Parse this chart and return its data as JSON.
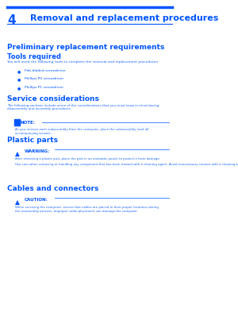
{
  "bg_color": "#ffffff",
  "blue": "#0055FF",
  "chapter_num": "4",
  "chapter_title": "Removal and replacement procedures",
  "section_title": "Preliminary replacement requirements",
  "tools_heading": "Tools required",
  "tools_intro": "You will need the following tools to complete the removal and replacement procedures:",
  "tools_list": [
    "Flat-bladed screwdriver",
    "Phillips P0 screwdriver",
    "Phillips P1 screwdriver"
  ],
  "service_heading": "Service considerations",
  "service_intro": "The following sections include some of the considerations that you must keep in mind during\ndisassembly and assembly procedures.",
  "note_label": "NOTE:",
  "note_text": "As you remove each subassembly from the computer, place the subassembly (and all\naccompanying screws)...",
  "electrostatic_heading": "Plastic parts",
  "electrostatic_warning_label": "WARNING:",
  "electrostatic_warning_text": "After removing a plastic part, place the part in an antistatic pouch to protect it from damage.",
  "electrostatic_extra": "Use care when removing or handling any component that has been treated with a cleaning agent. Avoid unnecessary contact with a cleaning agent.",
  "cables_heading": "Cables and connectors",
  "cables_warning_label": "CAUTION:",
  "cables_warning_text": "When servicing the computer, ensure that cables are placed in their proper locations during\nthe reassembly process. Improper cable placement can damage the computer."
}
